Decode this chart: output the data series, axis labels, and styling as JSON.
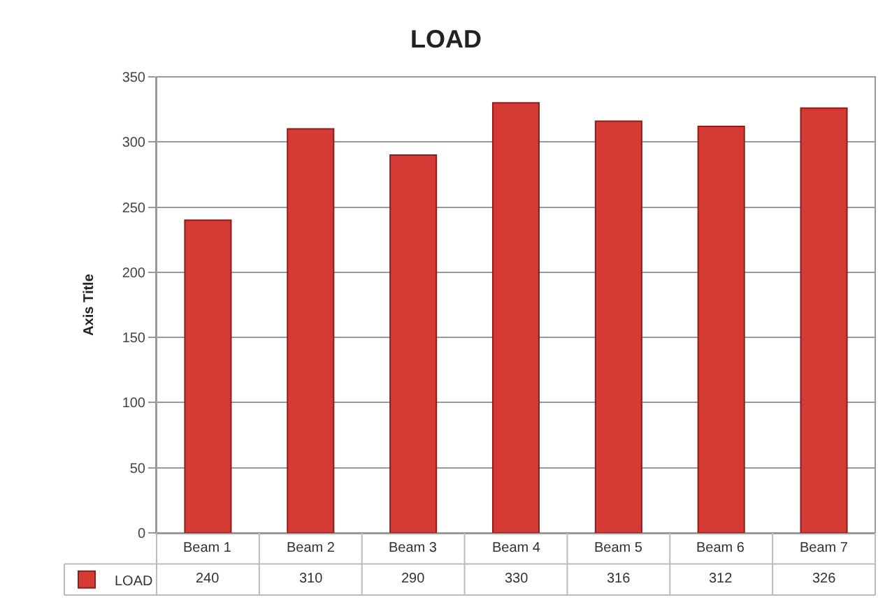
{
  "chart_data": {
    "type": "bar",
    "title": "LOAD",
    "ylabel": "Axis Title",
    "categories": [
      "Beam 1",
      "Beam 2",
      "Beam 3",
      "Beam 4",
      "Beam 5",
      "Beam 6",
      "Beam 7"
    ],
    "series": [
      {
        "name": "LOAD",
        "color": "#d63a35",
        "values": [
          240,
          310,
          290,
          330,
          316,
          312,
          326
        ]
      }
    ],
    "ylim": [
      0,
      350
    ],
    "yticks": [
      0,
      50,
      100,
      150,
      200,
      250,
      300,
      350
    ],
    "grid": "y",
    "data_labels": true,
    "legend": "bottom left"
  }
}
